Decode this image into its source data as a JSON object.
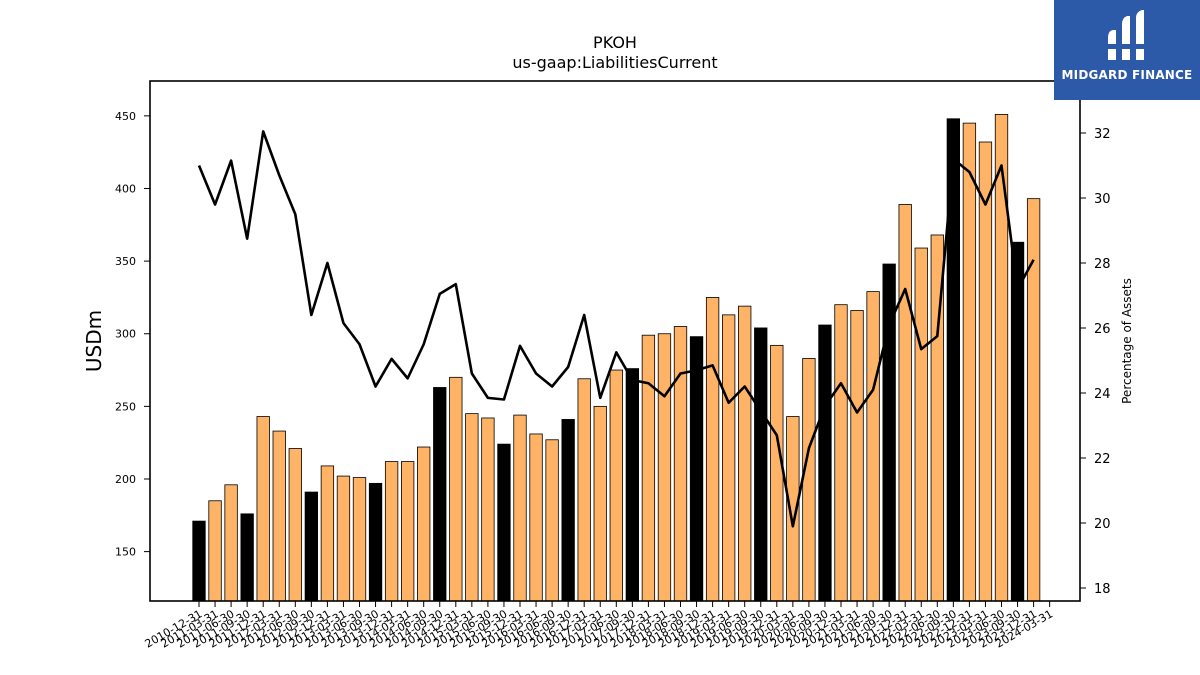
{
  "chart_data": {
    "type": "bar+line",
    "title": "PKOH",
    "subtitle": "us-gaap:LiabilitiesCurrent",
    "ylabel": "USDm",
    "y2label": "Percentage of Assets",
    "ylim": [
      116,
      474
    ],
    "y2lim": [
      17.6,
      33.6
    ],
    "yticks": [
      150,
      200,
      250,
      300,
      350,
      400,
      450
    ],
    "y2ticks": [
      18,
      20,
      22,
      24,
      26,
      28,
      30,
      32
    ],
    "categories": [
      "2010-12-31",
      "2011-03-31",
      "2011-06-30",
      "2011-09-30",
      "2011-12-31",
      "2012-03-31",
      "2012-06-30",
      "2012-09-30",
      "2012-12-31",
      "2013-03-31",
      "2013-06-30",
      "2013-09-30",
      "2013-12-31",
      "2014-03-31",
      "2014-06-30",
      "2014-09-30",
      "2014-12-31",
      "2015-03-31",
      "2015-06-30",
      "2015-09-30",
      "2015-12-31",
      "2016-03-31",
      "2016-06-30",
      "2016-09-30",
      "2016-12-31",
      "2017-03-31",
      "2017-06-30",
      "2017-09-30",
      "2017-12-31",
      "2018-03-31",
      "2018-06-30",
      "2018-09-30",
      "2018-12-31",
      "2019-03-31",
      "2019-06-30",
      "2019-09-30",
      "2019-12-31",
      "2020-03-31",
      "2020-06-30",
      "2020-09-30",
      "2020-12-31",
      "2021-03-31",
      "2021-06-30",
      "2021-09-30",
      "2021-12-31",
      "2022-03-31",
      "2022-06-30",
      "2022-09-30",
      "2022-12-31",
      "2023-03-31",
      "2023-06-30",
      "2023-09-30",
      "2023-12-31",
      "2024-03-31"
    ],
    "series": [
      {
        "name": "",
        "type": "bar",
        "values": [
          171,
          185,
          196,
          176,
          243,
          233,
          221,
          191,
          209,
          202,
          201,
          197,
          212,
          212,
          222,
          263,
          270,
          245,
          242,
          224,
          244,
          231,
          227,
          241,
          269,
          250,
          275,
          276,
          299,
          300,
          305,
          298,
          325,
          313,
          319,
          304,
          292,
          243,
          283,
          306,
          320,
          316,
          329,
          348,
          389,
          359,
          368,
          448,
          445,
          432,
          451,
          363,
          393,
          null
        ],
        "fill_color": "#ffb366",
        "highlight_color": "#000000",
        "highlight_indices": [
          0,
          3,
          7,
          11,
          15,
          19,
          23,
          27,
          31,
          35,
          39,
          43,
          47,
          51
        ]
      },
      {
        "name": "",
        "type": "line",
        "axis": "right",
        "values": [
          31.0,
          29.8,
          31.15,
          28.75,
          32.05,
          30.7,
          29.5,
          26.4,
          28.0,
          26.15,
          25.5,
          24.2,
          25.05,
          24.45,
          25.5,
          27.05,
          27.35,
          24.6,
          23.85,
          23.8,
          25.45,
          24.6,
          24.2,
          24.8,
          26.4,
          23.85,
          25.25,
          24.4,
          24.3,
          23.9,
          24.6,
          24.7,
          24.85,
          23.7,
          24.2,
          23.45,
          22.7,
          19.9,
          22.3,
          23.6,
          24.3,
          23.4,
          24.1,
          26.1,
          27.2,
          25.35,
          25.75,
          31.2,
          30.8,
          29.8,
          31.0,
          27.2,
          28.1,
          null
        ],
        "color": "#000000"
      }
    ],
    "grid": false
  },
  "logo": {
    "text": "MIDGARD FINANCE",
    "color": "#2d5aa8"
  }
}
